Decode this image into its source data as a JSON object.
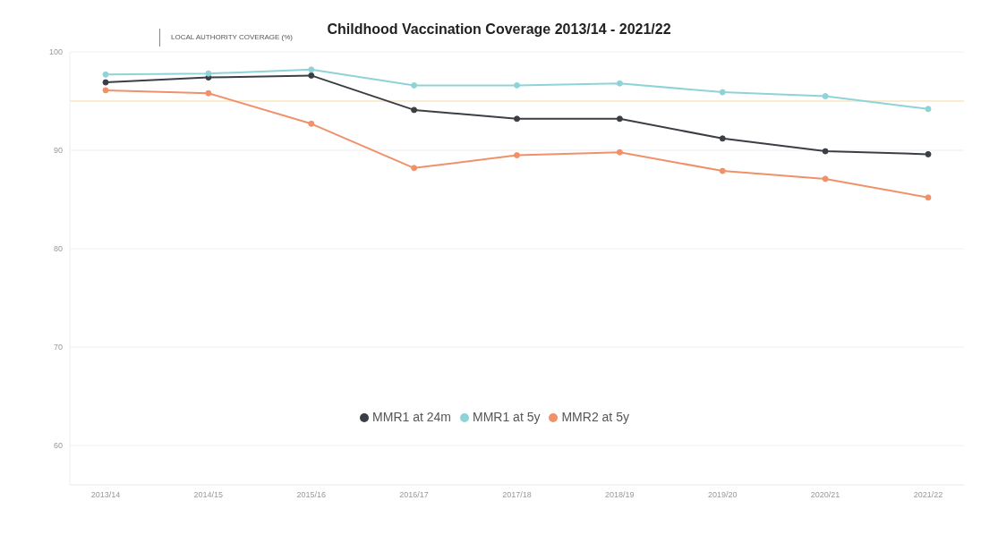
{
  "chart_data": {
    "type": "line",
    "title": "Childhood Vaccination Coverage 2013/14 - 2021/22",
    "annotations": [
      "LOCAL AUTHORITY COVERAGE (%)"
    ],
    "categories": [
      "2013/14",
      "2014/15",
      "2015/16",
      "2016/17",
      "2017/18",
      "2018/19",
      "2019/20",
      "2020/21",
      "2021/22"
    ],
    "series": [
      {
        "name": "MMR1 at 24m",
        "color": "#3b3f45",
        "values": [
          96.9,
          97.4,
          97.6,
          94.1,
          93.2,
          93.2,
          91.2,
          89.9,
          89.6
        ]
      },
      {
        "name": "MMR1 at 5y",
        "color": "#8fd3d8",
        "values": [
          97.7,
          97.8,
          98.2,
          96.6,
          96.6,
          96.8,
          95.9,
          95.5,
          94.2
        ]
      },
      {
        "name": "MMR2 at 5y",
        "color": "#f0916a",
        "values": [
          96.1,
          95.8,
          92.7,
          88.2,
          89.5,
          89.8,
          87.9,
          87.1,
          85.2
        ]
      }
    ],
    "ref_lines": [
      {
        "axis": "y",
        "value": 95,
        "color": "#f5d9a0"
      }
    ],
    "ylim": [
      56,
      100
    ],
    "yticks": [
      60,
      70,
      80,
      90,
      100
    ],
    "grid": "y",
    "legend": "bottom",
    "marker": "circle",
    "line_style": "solid"
  }
}
